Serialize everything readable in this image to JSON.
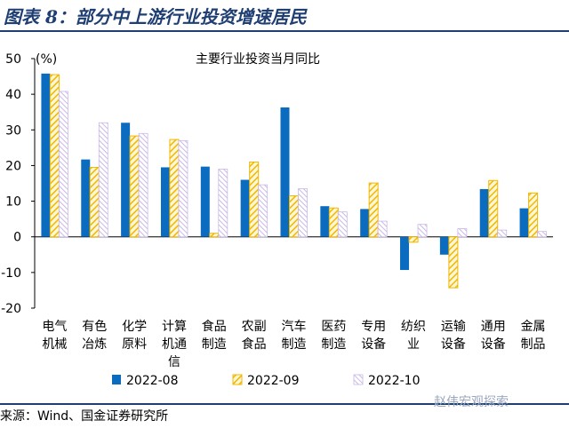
{
  "figure": {
    "title": "图表 8：部分中上游行业投资增速居民",
    "source": "来源：Wind、国金证券研究所",
    "watermark": "赵伟宏观探索"
  },
  "colors": {
    "series_2022_08": "#0a6bbf",
    "series_2022_09": "#f2b700",
    "series_2022_10": "#c9b8e8",
    "rule": "#1f3f73"
  },
  "chart_data": {
    "type": "bar",
    "title": "主要行业投资当月同比",
    "ylabel": "(%)",
    "xlabel": "",
    "ylim": [
      -20,
      50
    ],
    "yticks": [
      -20,
      -10,
      0,
      10,
      20,
      30,
      40,
      50
    ],
    "grid": false,
    "legend_position": "bottom",
    "categories": [
      [
        "电气",
        "机械"
      ],
      [
        "有色",
        "冶炼"
      ],
      [
        "化学",
        "原料"
      ],
      [
        "计算",
        "机通",
        "信"
      ],
      [
        "食品",
        "制造"
      ],
      [
        "农副",
        "食品"
      ],
      [
        "汽车",
        "制造"
      ],
      [
        "医药",
        "制造"
      ],
      [
        "专用",
        "设备"
      ],
      [
        "纺织",
        "业"
      ],
      [
        "运输",
        "设备"
      ],
      [
        "通用",
        "设备"
      ],
      [
        "金属",
        "制品"
      ]
    ],
    "series": [
      {
        "name": "2022-08",
        "values": [
          45.8,
          21.7,
          32.0,
          19.5,
          19.7,
          16.0,
          36.3,
          8.6,
          7.8,
          -9.3,
          -5.0,
          13.4,
          8.0
        ]
      },
      {
        "name": "2022-09",
        "values": [
          45.5,
          19.5,
          28.3,
          27.3,
          1.0,
          21.0,
          11.5,
          8.1,
          15.1,
          -1.5,
          -14.3,
          15.8,
          12.3
        ]
      },
      {
        "name": "2022-10",
        "values": [
          40.8,
          32.0,
          29.0,
          27.0,
          19.0,
          14.6,
          13.5,
          7.0,
          4.4,
          3.5,
          2.3,
          1.9,
          1.5
        ]
      }
    ]
  }
}
